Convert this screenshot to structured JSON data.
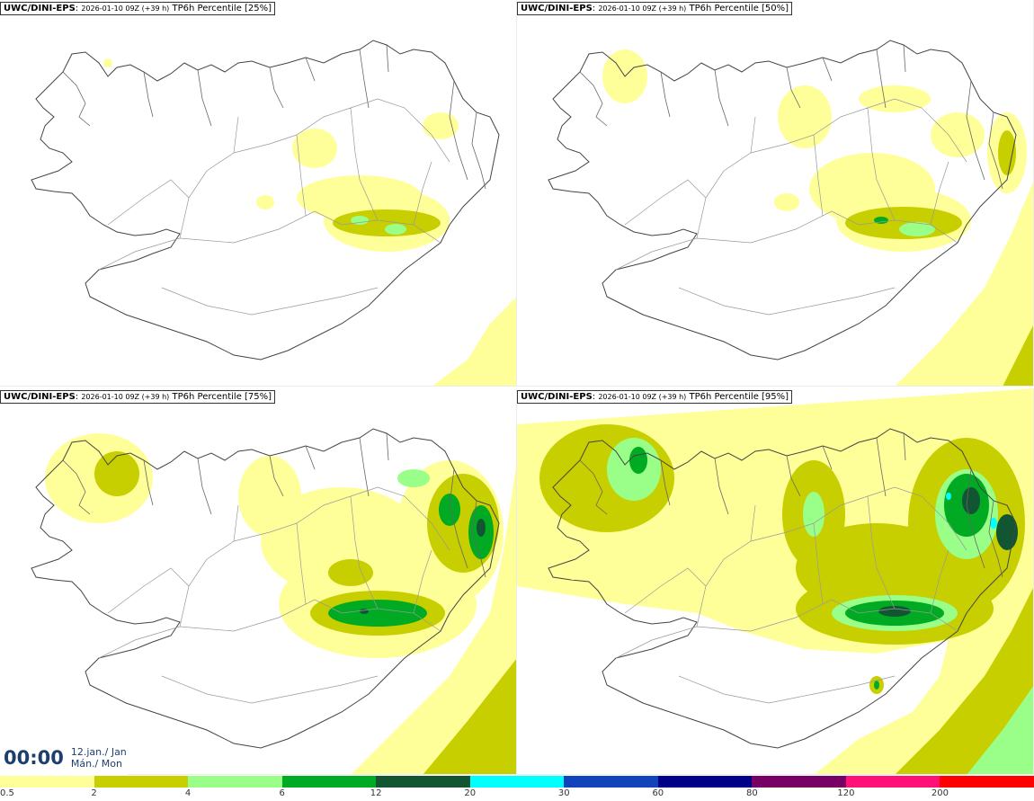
{
  "panels": [
    {
      "source": "UWC/DINI-EPS",
      "date": "2026-01-10 09Z (+39 h)",
      "title": "TP6h Percentile [25%]"
    },
    {
      "source": "UWC/DINI-EPS",
      "date": "2026-01-10 09Z (+39 h)",
      "title": "TP6h Percentile [50%]"
    },
    {
      "source": "UWC/DINI-EPS",
      "date": "2026-01-10 09Z (+39 h)",
      "title": "TP6h Percentile [75%]"
    },
    {
      "source": "UWC/DINI-EPS",
      "date": "2026-01-10 09Z (+39 h)",
      "title": "TP6h Percentile [95%]"
    }
  ],
  "time": {
    "clock": "00:00",
    "day_line": "12.jan./ Jan",
    "weekday_line": "Mán./ Mon"
  },
  "legend": {
    "ticks": [
      "0.5",
      "2",
      "4",
      "6",
      "12",
      "20",
      "30",
      "60",
      "80",
      "120",
      "200"
    ],
    "colors": [
      "#ffff99",
      "#c8cf00",
      "#99ff88",
      "#00aa22",
      "#115533",
      "#00ffff",
      "#1144bb",
      "#000088",
      "#770066",
      "#ff1177",
      "#ff0000"
    ]
  },
  "colors": {
    "level1": "#ffff99",
    "level2": "#c8cf00",
    "level3": "#99ff88",
    "level4": "#00aa22",
    "level5": "#115533",
    "level6": "#00ffff",
    "coast": "#444444",
    "roads": "#888888"
  }
}
